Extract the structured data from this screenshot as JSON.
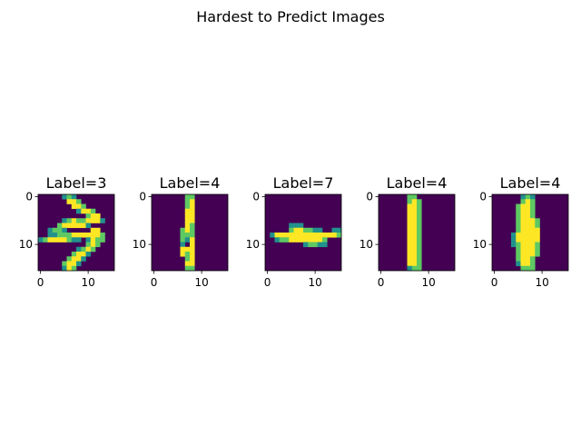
{
  "figure": {
    "title": "Hardest to Predict Images"
  },
  "chart_data": {
    "type": "heatmap",
    "colormap": "viridis",
    "title": "Hardest to Predict Images",
    "grid": false,
    "panels": [
      {
        "title": "Label=3",
        "xticks": [
          0,
          10
        ],
        "yticks": [
          0,
          10
        ],
        "shape": [
          16,
          16
        ],
        "pixels": [
          "0000012100000000",
          "0000003320000000",
          "0000000332000000",
          "0000000013320000",
          "0000000000233000",
          "0000012322333100",
          "0000233333100000",
          "0012210000033000",
          "0011222333343200",
          "1233332110132200",
          "0000000000232000",
          "0000000012320000",
          "0000000233100000",
          "0000002331000000",
          "0000023310000000",
          "0000013200000000"
        ]
      },
      {
        "title": "Label=4",
        "xticks": [
          0,
          10
        ],
        "yticks": [
          0,
          10
        ],
        "shape": [
          16,
          16
        ],
        "pixels": [
          "0000000220000000",
          "0000000230000000",
          "0000000230000000",
          "0000000330000000",
          "0000000330000000",
          "0000000330000000",
          "0000000320000000",
          "0000002320000000",
          "0000002220000000",
          "0000002130000000",
          "0000001030000000",
          "0000003330000000",
          "0000003230000000",
          "0000000230000000",
          "0000000330000000",
          "0000000220000000"
        ]
      },
      {
        "title": "Label=7",
        "xticks": [
          0,
          10
        ],
        "yticks": [
          0,
          10
        ],
        "shape": [
          16,
          16
        ],
        "pixels": [
          "0000000000000000",
          "0000000000000000",
          "0000000000000000",
          "0000000000000000",
          "0000000000000000",
          "0000000000000000",
          "0000011100000000",
          "0000023322110011",
          "0133333333333332",
          "0012233333332000",
          "0000000012211000",
          "0000000000000000",
          "0000000000000000",
          "0000000000000000",
          "0000000000000000",
          "0000000000000000"
        ]
      },
      {
        "title": "Label=4",
        "xticks": [
          0,
          10
        ],
        "yticks": [
          0,
          10
        ],
        "shape": [
          16,
          16
        ],
        "pixels": [
          "0000002200000000",
          "0000002320000000",
          "0000003320000000",
          "0000003320000000",
          "0000003320000000",
          "0000003320000000",
          "0000003320000000",
          "0000003320000000",
          "0000003320000000",
          "0000003320000000",
          "0000003320000000",
          "0000003320000000",
          "0000003320000000",
          "0000003320000000",
          "0000003320000000",
          "0000001220000000"
        ]
      },
      {
        "title": "Label=4",
        "xticks": [
          0,
          10
        ],
        "yticks": [
          0,
          10
        ],
        "shape": [
          16,
          16
        ],
        "pixels": [
          "0000001210000000",
          "0000002320000000",
          "0000023320000000",
          "0000023320000000",
          "0000023320000000",
          "0000023332000000",
          "0000023332000000",
          "0000023333000000",
          "0000133333000000",
          "0000133333000000",
          "0000123332000000",
          "0000023332000000",
          "0000023332000000",
          "0000023320000000",
          "0000013320000000",
          "0000002220000000"
        ]
      }
    ]
  }
}
